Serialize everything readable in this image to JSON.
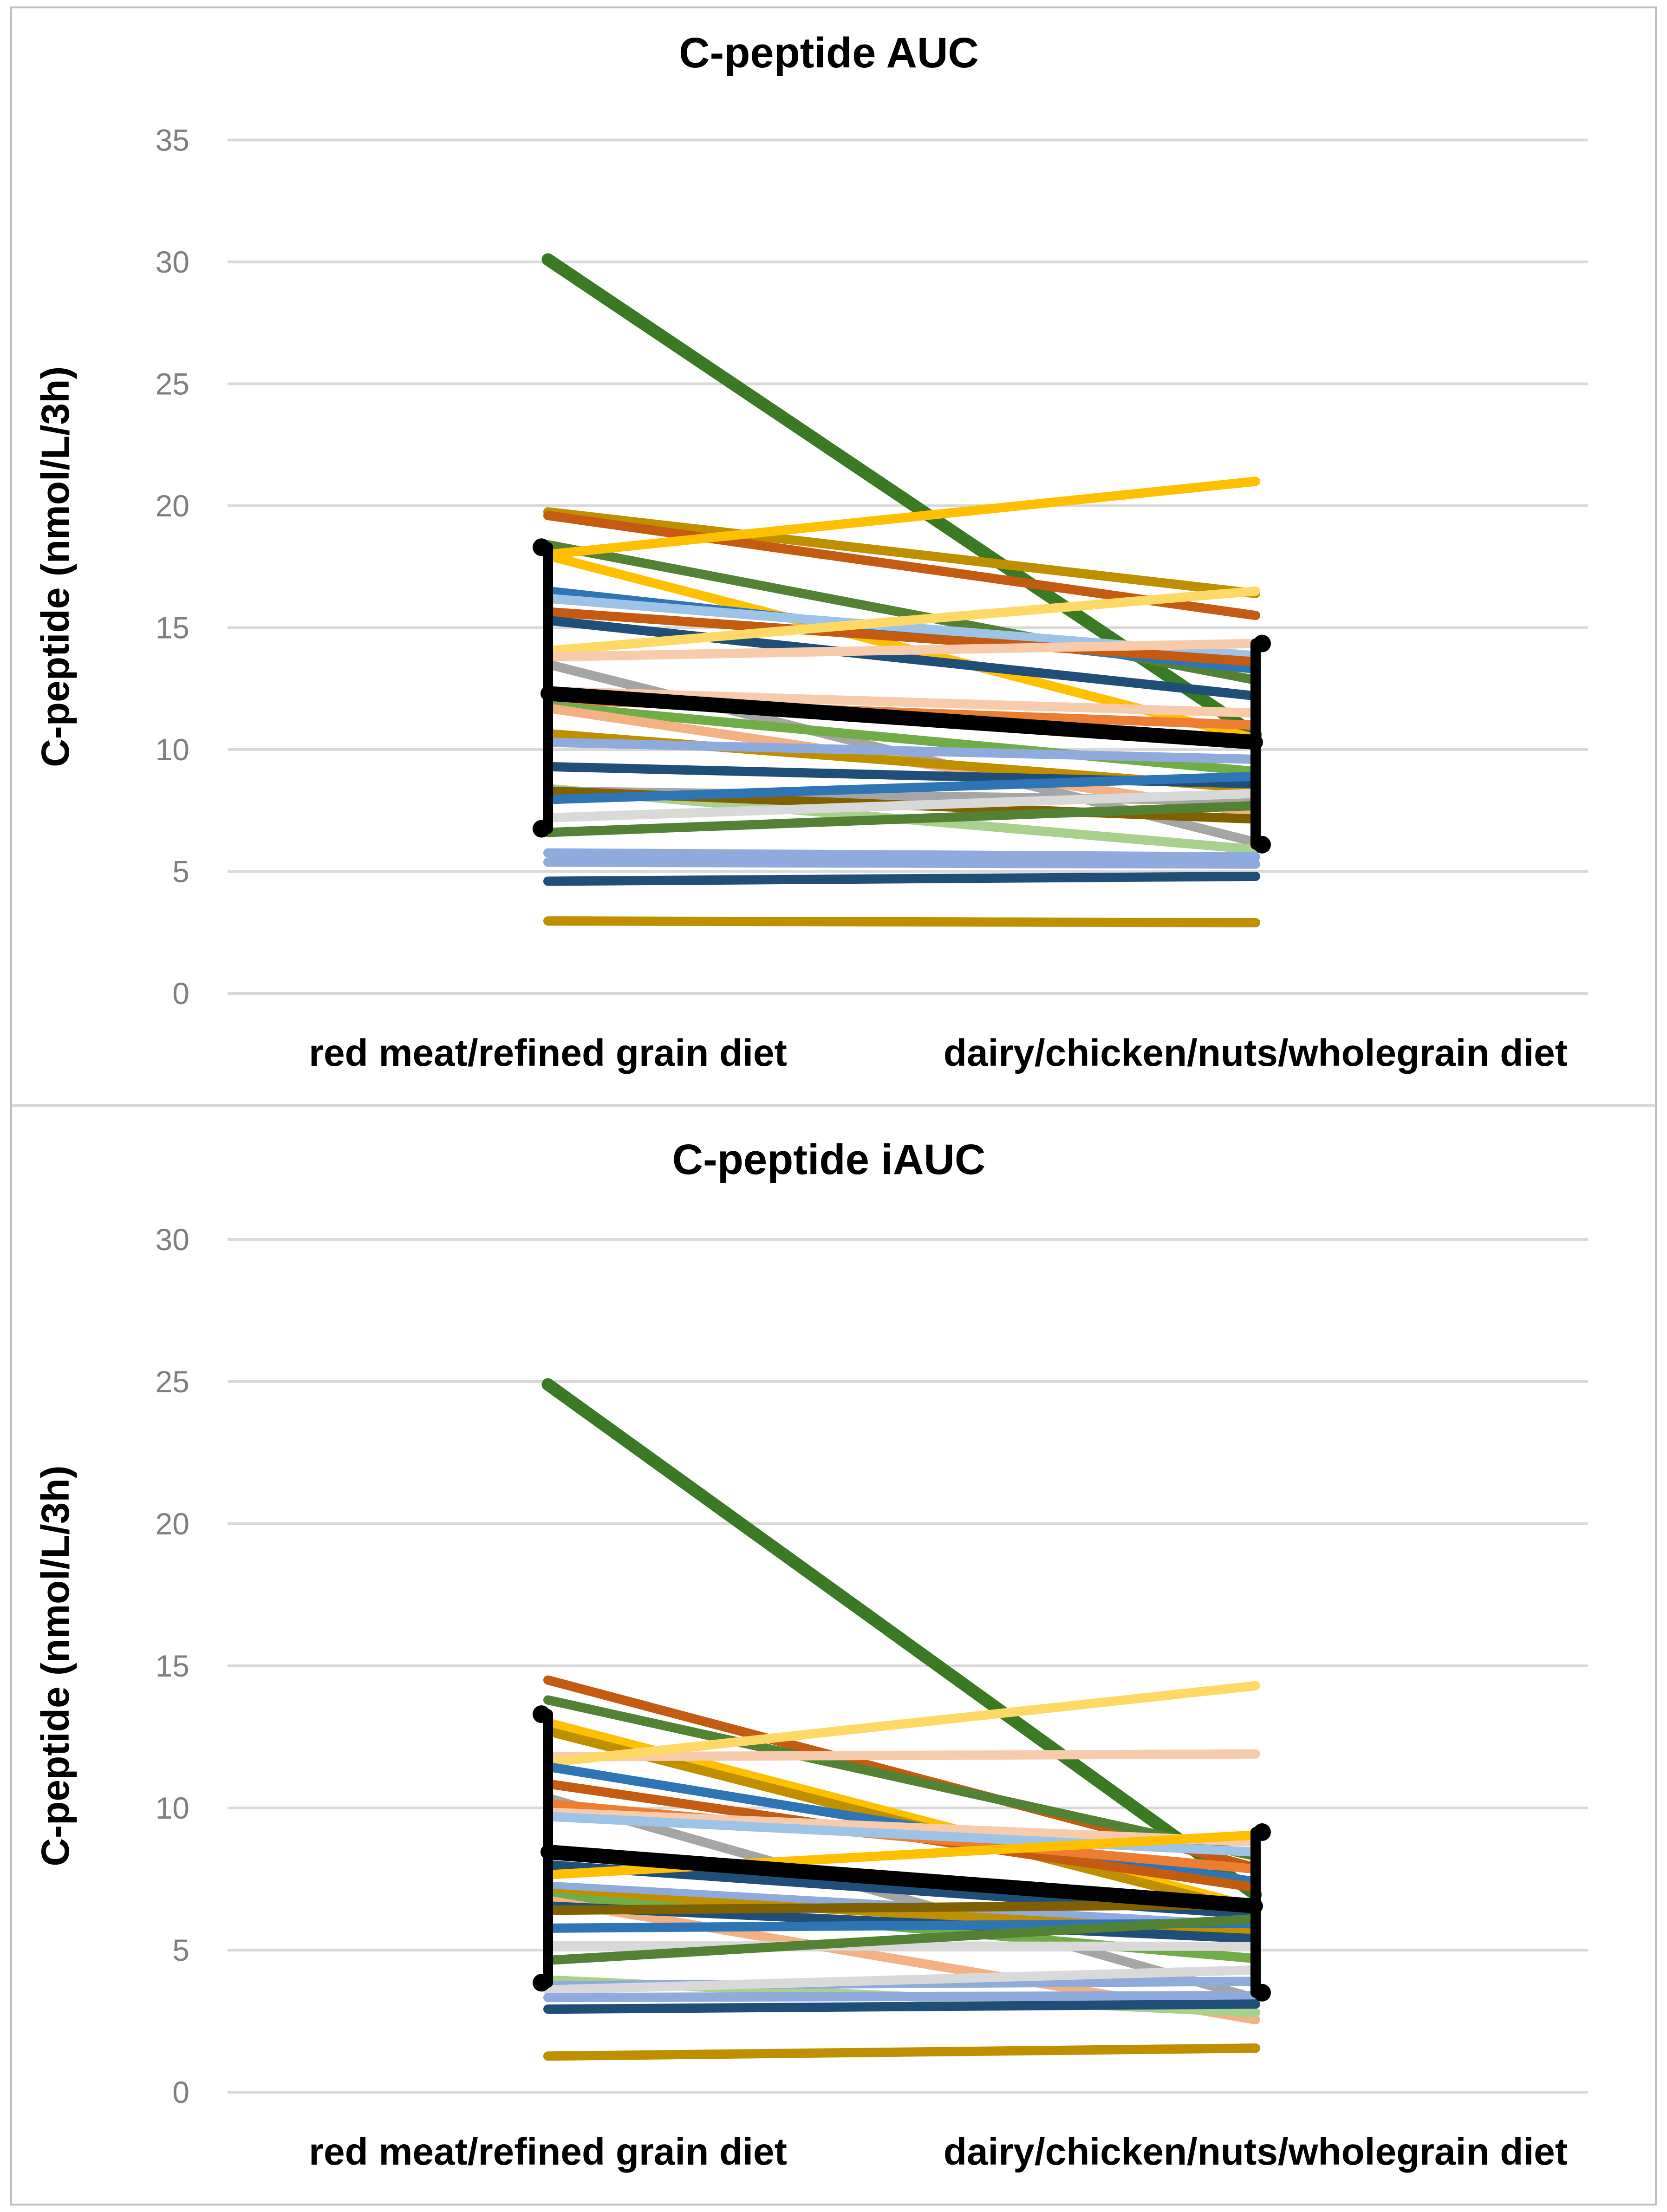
{
  "figure": {
    "kind": "paired-slope-charts",
    "background_color": "#FFFFFF",
    "frame_color": "#BFBFBF",
    "divider_color": "#D9D9D9",
    "gridline_color": "#D9D9D9",
    "tick_label_color": "#7F7F7F",
    "text_color": "#000000"
  },
  "chart_data": [
    {
      "type": "line",
      "subtype": "paired-individual-slopes-with-mean",
      "title": "C-peptide AUC",
      "xlabel": "",
      "ylabel": "C-peptide (nmol/L/3h)",
      "categories": [
        "red meat/refined grain diet",
        "dairy/chicken/nuts/wholegrain diet"
      ],
      "ylim": [
        0,
        35
      ],
      "ytick_step": 5,
      "ytick_labels": [
        "35",
        "30",
        "25",
        "20",
        "15",
        "10",
        "5",
        "0"
      ],
      "grid": true,
      "legend": false,
      "series": [
        {
          "name": "participant",
          "color": "#397A22",
          "values": [
            30.1,
            10.6
          ],
          "thick": true
        },
        {
          "name": "participant",
          "color": "#BF8F00",
          "values": [
            19.75,
            16.4
          ]
        },
        {
          "name": "participant",
          "color": "#C55A11",
          "values": [
            19.6,
            15.5
          ]
        },
        {
          "name": "participant",
          "color": "#548235",
          "values": [
            18.4,
            12.85
          ]
        },
        {
          "name": "participant",
          "color": "#FFC000",
          "values": [
            18.0,
            21.0
          ]
        },
        {
          "name": "participant",
          "color": "#FFC000",
          "values": [
            17.95,
            10.45
          ]
        },
        {
          "name": "participant",
          "color": "#2E75B6",
          "values": [
            16.5,
            13.3
          ]
        },
        {
          "name": "participant",
          "color": "#9DC3E6",
          "values": [
            16.2,
            13.85
          ]
        },
        {
          "name": "participant",
          "color": "#C55A11",
          "values": [
            15.65,
            13.6
          ]
        },
        {
          "name": "participant",
          "color": "#1F4E79",
          "values": [
            15.3,
            12.2
          ]
        },
        {
          "name": "participant",
          "color": "#FFD966",
          "values": [
            14.05,
            16.5
          ]
        },
        {
          "name": "participant",
          "color": "#F8CBAD",
          "values": [
            13.8,
            14.35
          ]
        },
        {
          "name": "participant",
          "color": "#A5A5A5",
          "values": [
            13.5,
            6.2
          ]
        },
        {
          "name": "participant",
          "color": "#F8CBAD",
          "values": [
            12.4,
            11.5
          ]
        },
        {
          "name": "participant",
          "color": "#ED7D31",
          "values": [
            12.05,
            11.0
          ]
        },
        {
          "name": "participant",
          "color": "#70AD47",
          "values": [
            11.8,
            9.1
          ]
        },
        {
          "name": "participant",
          "color": "#F4B183",
          "values": [
            11.7,
            7.4
          ]
        },
        {
          "name": "participant",
          "color": "#BF8F00",
          "values": [
            10.65,
            8.4
          ]
        },
        {
          "name": "participant",
          "color": "#8FAADC",
          "values": [
            10.3,
            9.6
          ]
        },
        {
          "name": "participant",
          "color": "#1F4E79",
          "values": [
            9.3,
            8.6
          ]
        },
        {
          "name": "participant",
          "color": "#A9D18E",
          "values": [
            8.4,
            5.9
          ]
        },
        {
          "name": "participant",
          "color": "#A5A5A5",
          "values": [
            8.3,
            7.9
          ]
        },
        {
          "name": "participant",
          "color": "#806000",
          "values": [
            8.3,
            7.15
          ]
        },
        {
          "name": "participant",
          "color": "#2E75B6",
          "values": [
            7.95,
            8.9
          ]
        },
        {
          "name": "participant",
          "color": "#D9D9D9",
          "values": [
            7.2,
            8.2
          ]
        },
        {
          "name": "participant",
          "color": "#548235",
          "values": [
            6.6,
            7.7
          ]
        },
        {
          "name": "participant",
          "color": "#8FAADC",
          "values": [
            5.76,
            5.6
          ]
        },
        {
          "name": "participant",
          "color": "#8FAADC",
          "values": [
            5.38,
            5.3
          ]
        },
        {
          "name": "participant",
          "color": "#1F4E79",
          "values": [
            4.6,
            4.8
          ]
        },
        {
          "name": "participant",
          "color": "#BF8F00",
          "values": [
            2.97,
            2.9
          ]
        }
      ],
      "mean": {
        "name": "mean with error bars",
        "color": "#000000",
        "values": [
          12.3,
          10.3
        ],
        "error_low": [
          6.75,
          6.1
        ],
        "error_high": [
          18.3,
          14.35
        ]
      }
    },
    {
      "type": "line",
      "subtype": "paired-individual-slopes-with-mean",
      "title": "C-peptide iAUC",
      "xlabel": "",
      "ylabel": "C-peptide (nmol/L/3h)",
      "categories": [
        "red meat/refined grain diet",
        "dairy/chicken/nuts/wholegrain diet"
      ],
      "ylim": [
        0,
        30
      ],
      "ytick_step": 5,
      "ytick_labels": [
        "30",
        "25",
        "20",
        "15",
        "10",
        "5",
        "0"
      ],
      "grid": true,
      "legend": false,
      "series": [
        {
          "name": "participant",
          "color": "#397A22",
          "values": [
            24.9,
            6.95
          ],
          "thick": true
        },
        {
          "name": "participant",
          "color": "#C55A11",
          "values": [
            14.5,
            7.9
          ]
        },
        {
          "name": "participant",
          "color": "#548235",
          "values": [
            13.8,
            8.3
          ]
        },
        {
          "name": "participant",
          "color": "#FFC000",
          "values": [
            13.0,
            6.5
          ]
        },
        {
          "name": "participant",
          "color": "#BF8F00",
          "values": [
            12.7,
            6.35
          ]
        },
        {
          "name": "participant",
          "color": "#F8CBAD",
          "values": [
            11.8,
            11.9
          ]
        },
        {
          "name": "participant",
          "color": "#FFD966",
          "values": [
            11.6,
            14.3
          ]
        },
        {
          "name": "participant",
          "color": "#2E75B6",
          "values": [
            11.45,
            7.4
          ]
        },
        {
          "name": "participant",
          "color": "#C55A11",
          "values": [
            10.85,
            7.2
          ]
        },
        {
          "name": "participant",
          "color": "#A5A5A5",
          "values": [
            10.35,
            3.3
          ]
        },
        {
          "name": "participant",
          "color": "#ED7D31",
          "values": [
            10.15,
            7.85
          ]
        },
        {
          "name": "participant",
          "color": "#F8CBAD",
          "values": [
            9.85,
            8.8
          ]
        },
        {
          "name": "participant",
          "color": "#9DC3E6",
          "values": [
            9.7,
            8.45
          ]
        },
        {
          "name": "participant",
          "color": "#1F4E79",
          "values": [
            8.0,
            6.25
          ]
        },
        {
          "name": "participant",
          "color": "#FFC000",
          "values": [
            7.65,
            9.05
          ]
        },
        {
          "name": "participant",
          "color": "#8FAADC",
          "values": [
            7.25,
            5.85
          ]
        },
        {
          "name": "participant",
          "color": "#BF8F00",
          "values": [
            7.0,
            5.6
          ]
        },
        {
          "name": "participant",
          "color": "#70AD47",
          "values": [
            6.9,
            4.7
          ]
        },
        {
          "name": "participant",
          "color": "#F4B183",
          "values": [
            6.75,
            2.55
          ]
        },
        {
          "name": "participant",
          "color": "#1F4E79",
          "values": [
            6.55,
            5.4
          ]
        },
        {
          "name": "participant",
          "color": "#806000",
          "values": [
            6.4,
            6.6
          ]
        },
        {
          "name": "participant",
          "color": "#2E75B6",
          "values": [
            5.77,
            5.95
          ]
        },
        {
          "name": "participant",
          "color": "#D9D9D9",
          "values": [
            5.15,
            5.13
          ]
        },
        {
          "name": "participant",
          "color": "#548235",
          "values": [
            4.64,
            6.1
          ]
        },
        {
          "name": "participant",
          "color": "#A9D18E",
          "values": [
            3.95,
            2.8
          ]
        },
        {
          "name": "participant",
          "color": "#8FAADC",
          "values": [
            3.75,
            3.9
          ]
        },
        {
          "name": "participant",
          "color": "#D9D9D9",
          "values": [
            3.6,
            4.3
          ]
        },
        {
          "name": "participant",
          "color": "#8FAADC",
          "values": [
            3.33,
            3.4
          ]
        },
        {
          "name": "participant",
          "color": "#1F4E79",
          "values": [
            2.92,
            3.1
          ]
        },
        {
          "name": "participant",
          "color": "#BF8F00",
          "values": [
            1.27,
            1.55
          ]
        }
      ],
      "mean": {
        "name": "mean with error bars",
        "color": "#000000",
        "values": [
          8.45,
          6.55
        ],
        "error_low": [
          3.85,
          3.5
        ],
        "error_high": [
          13.3,
          9.15
        ]
      }
    }
  ]
}
